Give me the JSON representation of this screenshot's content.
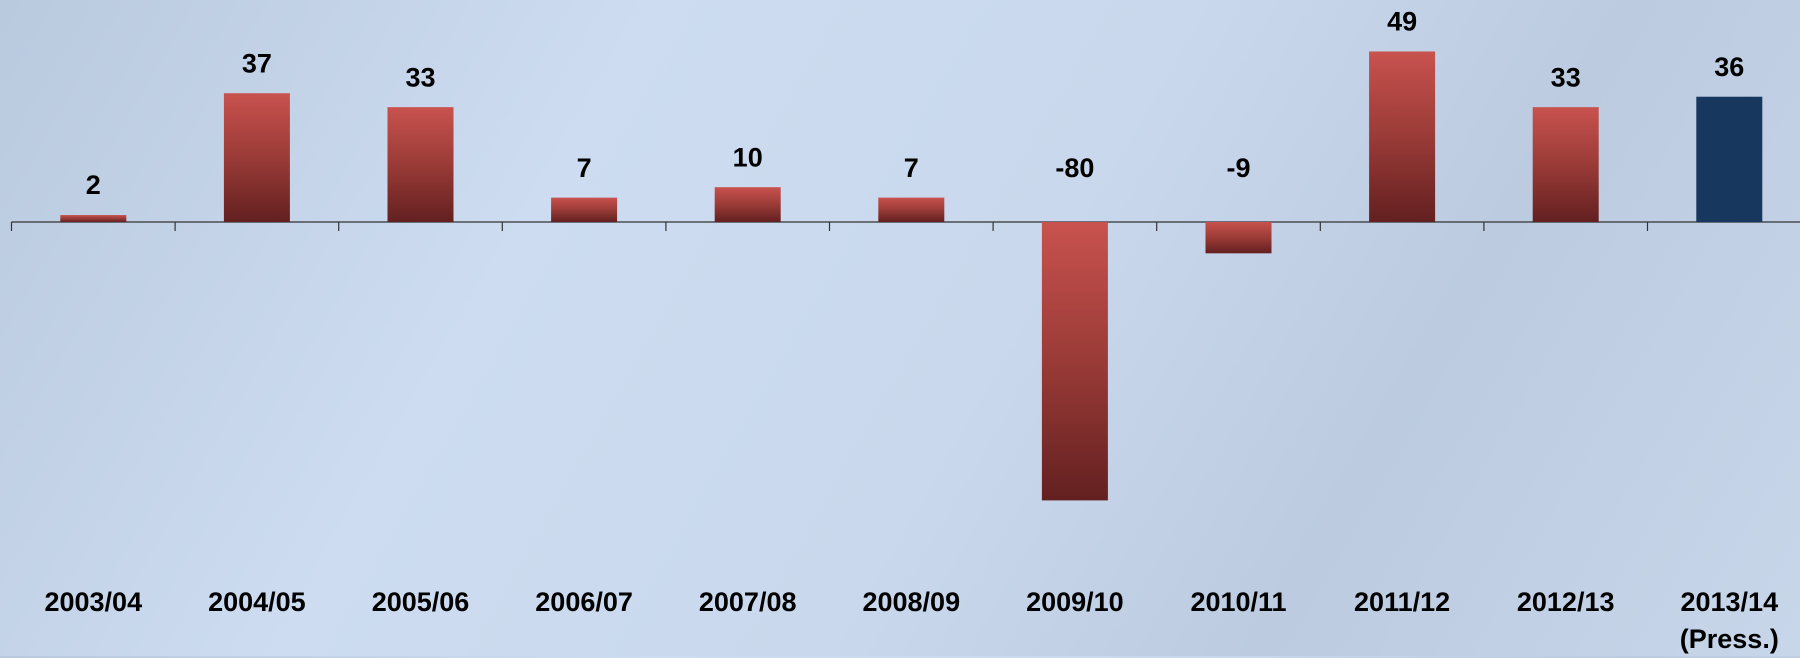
{
  "chart_data": {
    "type": "bar",
    "categories": [
      "2003/04",
      "2004/05",
      "2005/06",
      "2006/07",
      "2007/08",
      "2008/09",
      "2009/10",
      "2010/11",
      "2011/12",
      "2012/13",
      "2013/14 (Press.)"
    ],
    "values": [
      2,
      37,
      33,
      7,
      10,
      7,
      -80,
      -9,
      49,
      33,
      36
    ],
    "colors": [
      "#c0504d",
      "#c0504d",
      "#c0504d",
      "#c0504d",
      "#c0504d",
      "#c0504d",
      "#c0504d",
      "#c0504d",
      "#c0504d",
      "#c0504d",
      "#17375e"
    ]
  }
}
